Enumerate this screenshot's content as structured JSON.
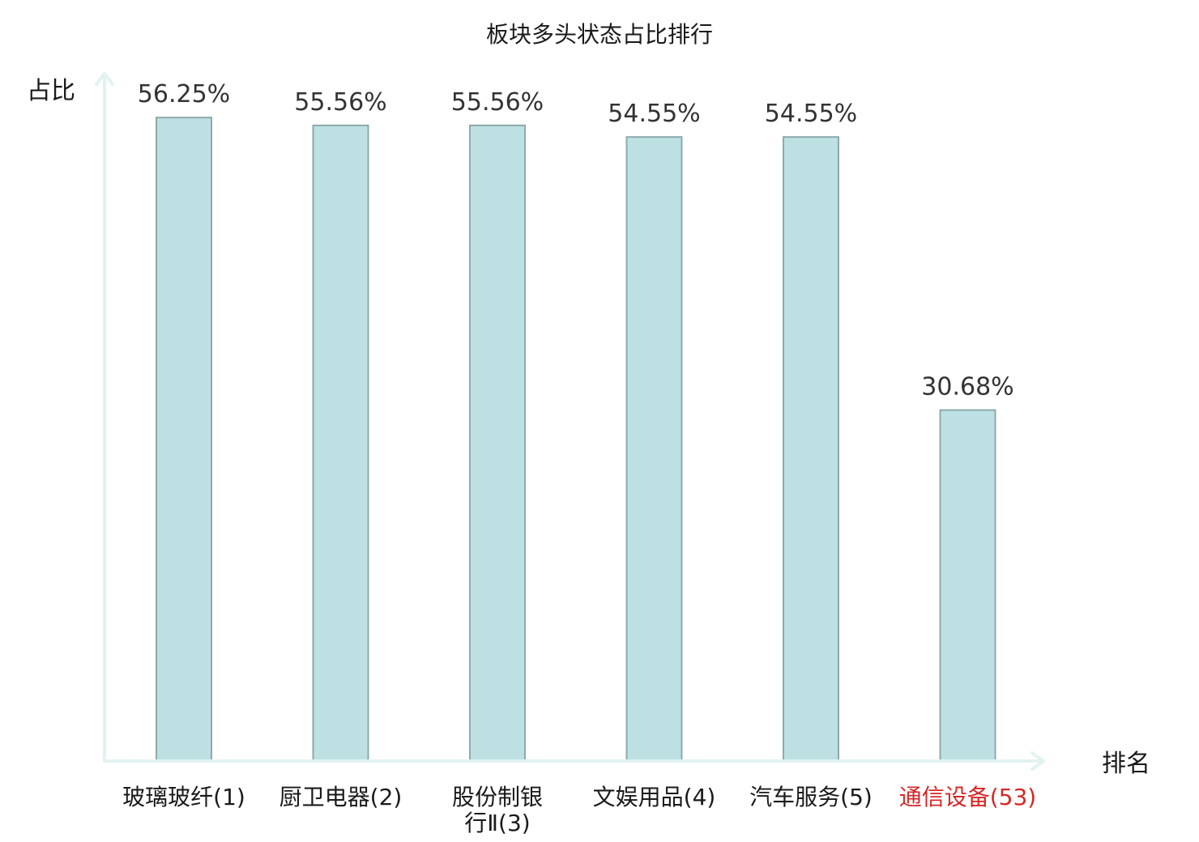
{
  "chart_data": {
    "type": "bar",
    "title": "板块多头状态占比排行",
    "ylabel": "占比",
    "xlabel": "排名",
    "ylim": [
      0,
      60
    ],
    "grid": false,
    "categories": [
      [
        "玻璃玻纤(1)"
      ],
      [
        "厨卫电器(2)"
      ],
      [
        "股份制银",
        "行Ⅱ(3)"
      ],
      [
        "文娱用品(4)"
      ],
      [
        "汽车服务(5)"
      ],
      [
        "通信设备(53)"
      ]
    ],
    "values": [
      56.25,
      55.56,
      55.56,
      54.55,
      54.55,
      30.68
    ],
    "value_labels": [
      "56.25%",
      "55.56%",
      "55.56%",
      "54.55%",
      "54.55%",
      "30.68%"
    ],
    "highlight_index": 5,
    "colors": {
      "bar_fill": "#bde1e3",
      "bar_stroke": "#8fa9aa",
      "axis": "#e1f3f1",
      "highlight_text": "#d62728"
    }
  }
}
